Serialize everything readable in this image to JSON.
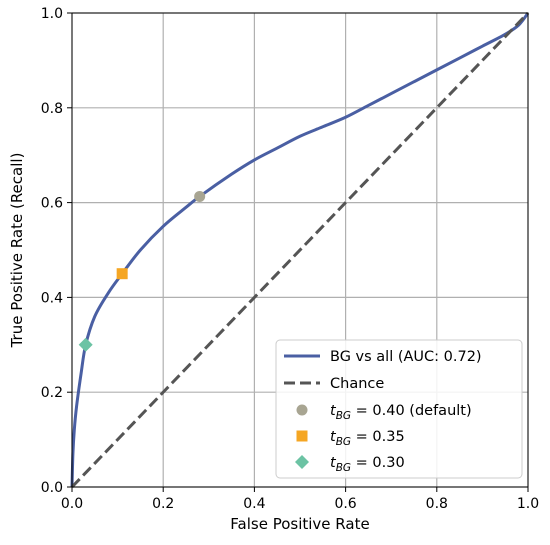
{
  "chart_data": {
    "type": "line",
    "xlabel": "False Positive Rate",
    "ylabel": "True Positive Rate (Recall)",
    "xlim": [
      0.0,
      1.0
    ],
    "ylim": [
      0.0,
      1.0
    ],
    "xticks": [
      "0.0",
      "0.2",
      "0.4",
      "0.6",
      "0.8",
      "1.0"
    ],
    "yticks": [
      "0.0",
      "0.2",
      "0.4",
      "0.6",
      "0.8",
      "1.0"
    ],
    "grid": true,
    "legend_position": "lower-right",
    "series": [
      {
        "name": "BG vs all (AUC: 0.72)",
        "style": "solid",
        "color": "#4a5fa3",
        "x": [
          0.0,
          0.002,
          0.005,
          0.01,
          0.02,
          0.03,
          0.05,
          0.08,
          0.11,
          0.15,
          0.2,
          0.25,
          0.28,
          0.35,
          0.4,
          0.45,
          0.5,
          0.55,
          0.6,
          0.65,
          0.7,
          0.75,
          0.8,
          0.85,
          0.9,
          0.95,
          0.98,
          1.0
        ],
        "y": [
          0.0,
          0.07,
          0.12,
          0.17,
          0.24,
          0.3,
          0.36,
          0.41,
          0.45,
          0.5,
          0.55,
          0.59,
          0.613,
          0.66,
          0.69,
          0.715,
          0.74,
          0.76,
          0.78,
          0.805,
          0.83,
          0.855,
          0.88,
          0.905,
          0.93,
          0.955,
          0.975,
          1.0
        ]
      },
      {
        "name": "Chance",
        "style": "dashed",
        "color": "#555555",
        "x": [
          0.0,
          1.0
        ],
        "y": [
          0.0,
          1.0
        ]
      }
    ],
    "points": [
      {
        "label_var": "t",
        "label_sub": "BG",
        "label_rest": " = 0.40 (default)",
        "x": 0.28,
        "y": 0.613,
        "marker": "circle",
        "color": "#a8a592"
      },
      {
        "label_var": "t",
        "label_sub": "BG",
        "label_rest": " = 0.35",
        "x": 0.11,
        "y": 0.45,
        "marker": "square",
        "color": "#f5a623"
      },
      {
        "label_var": "t",
        "label_sub": "BG",
        "label_rest": " = 0.30",
        "x": 0.03,
        "y": 0.3,
        "marker": "diamond",
        "color": "#6cc3a4"
      }
    ]
  }
}
